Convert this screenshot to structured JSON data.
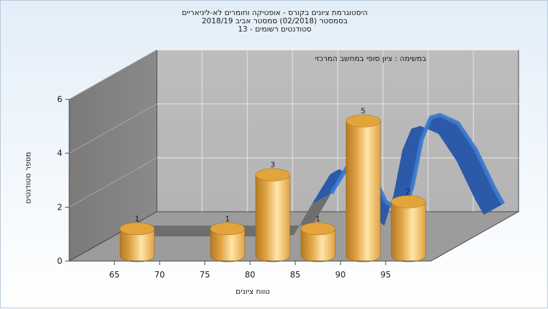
{
  "chart_data": {
    "type": "bar",
    "title_lines": [
      "היסטוגרמת ציונים בקורס - אופטיקה וחומרים לא-ליניאריים",
      "בסמסטר  (02/2018)  סמסטר אביב 2018/19",
      "סטודנטים רשומים - 13"
    ],
    "subtitle": "במשימה : ציון סופי במחשב המרכזי",
    "xlabel": "טווח ציונים",
    "ylabel": "מספר סטודנטים",
    "x_ticks": [
      "65",
      "70",
      "75",
      "80",
      "85",
      "90",
      "95"
    ],
    "y_ticks": [
      "0",
      "2",
      "4",
      "6"
    ],
    "ylim": [
      0,
      6
    ],
    "grid": true,
    "bars": [
      {
        "x": 65,
        "value": 1
      },
      {
        "x": 75,
        "value": 1
      },
      {
        "x": 80,
        "value": 3
      },
      {
        "x": 85,
        "value": 1
      },
      {
        "x": 90,
        "value": 5
      },
      {
        "x": 95,
        "value": 2
      }
    ],
    "curve": {
      "x": [
        62,
        64,
        66,
        68,
        70,
        72,
        74,
        76,
        78,
        80,
        82,
        84,
        85,
        86,
        88,
        90,
        91,
        92,
        93,
        94,
        96,
        98,
        100,
        101
      ],
      "y": [
        0,
        0,
        0,
        0,
        0,
        0,
        0,
        0,
        0,
        0.05,
        1.2,
        2.3,
        2.5,
        2.3,
        0.9,
        0.4,
        1.5,
        3.2,
        4.0,
        4.1,
        3.8,
        2.8,
        1.4,
        0.8
      ]
    },
    "colors": {
      "bar": "#e0a244",
      "bar_light": "#ffe6a8",
      "bar_dark": "#b47a22",
      "curve_front": "#3a78d0",
      "curve_back": "#2c5aa8",
      "curve_flat": "#6e6e6e",
      "wall_back": "#b4b4b4",
      "wall_left": "#8a8a8a",
      "floor": "#9c9c9c"
    }
  }
}
